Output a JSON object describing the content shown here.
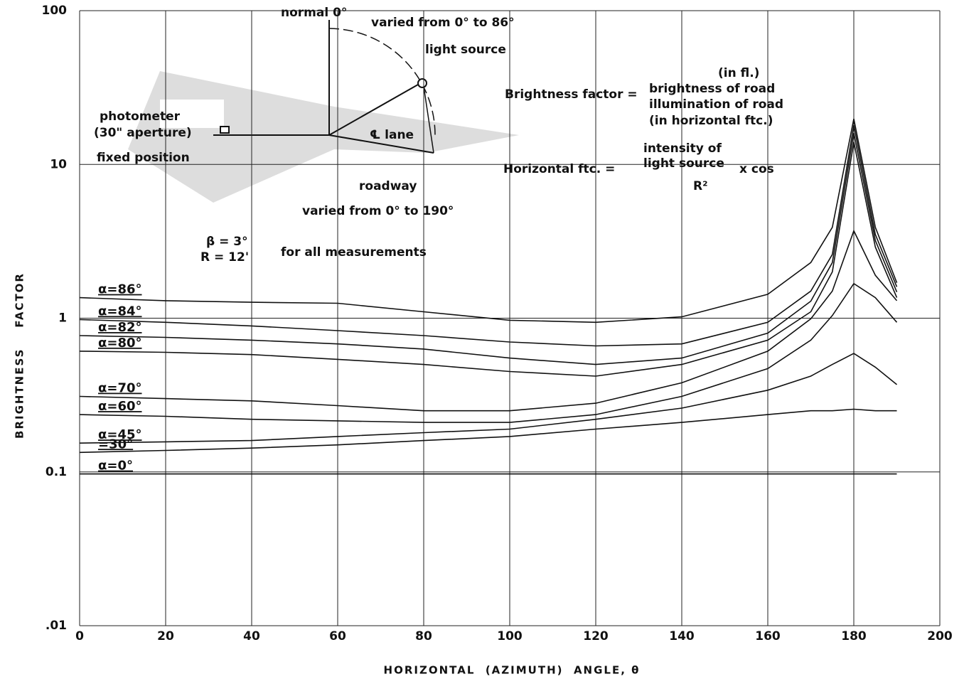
{
  "chart_data": {
    "type": "line",
    "xlabel": "HORIZONTAL  (AZIMUTH)  ANGLE, θ",
    "ylabel": "BRIGHTNESS    FACTOR",
    "log_y": true,
    "grid": true,
    "color": "#111111",
    "xlim": [
      0,
      200
    ],
    "ylim": [
      0.01,
      100
    ],
    "xticks": [
      0,
      20,
      40,
      60,
      80,
      100,
      120,
      140,
      160,
      180,
      200
    ],
    "yticks": [
      {
        "value": 0.01,
        "label": ".01"
      },
      0.1,
      1,
      10,
      100
    ],
    "x": [
      0,
      20,
      40,
      60,
      80,
      100,
      120,
      140,
      160,
      170,
      175,
      180,
      185,
      190
    ],
    "series": [
      {
        "name": "α=86°",
        "values": [
          1.36,
          1.3,
          1.27,
          1.25,
          1.1,
          0.97,
          0.94,
          1.02,
          1.43,
          2.3,
          3.9,
          19.8,
          3.9,
          1.7
        ]
      },
      {
        "name": "α=84°",
        "values": [
          0.98,
          0.94,
          0.89,
          0.83,
          0.77,
          0.7,
          0.66,
          0.68,
          0.94,
          1.5,
          2.6,
          18,
          3.5,
          1.6
        ]
      },
      {
        "name": "α=82°",
        "values": [
          0.77,
          0.75,
          0.72,
          0.68,
          0.63,
          0.55,
          0.5,
          0.55,
          0.8,
          1.29,
          2.3,
          16,
          3.2,
          1.48
        ]
      },
      {
        "name": "α=80°",
        "values": [
          0.61,
          0.6,
          0.58,
          0.54,
          0.5,
          0.45,
          0.42,
          0.5,
          0.72,
          1.1,
          2.0,
          14,
          2.9,
          1.36
        ]
      },
      {
        "name": "α=70°",
        "values": [
          0.31,
          0.3,
          0.29,
          0.27,
          0.25,
          0.25,
          0.28,
          0.38,
          0.61,
          0.99,
          1.5,
          3.7,
          1.9,
          1.3
        ]
      },
      {
        "name": "α=60°",
        "values": [
          0.236,
          0.23,
          0.22,
          0.215,
          0.21,
          0.21,
          0.236,
          0.31,
          0.47,
          0.72,
          1.04,
          1.68,
          1.36,
          0.94
        ]
      },
      {
        "name": "α=45°",
        "values": [
          0.154,
          0.157,
          0.16,
          0.17,
          0.18,
          0.19,
          0.22,
          0.26,
          0.34,
          0.42,
          0.5,
          0.59,
          0.48,
          0.37
        ]
      },
      {
        "name": "=30°",
        "values": [
          0.134,
          0.138,
          0.143,
          0.15,
          0.16,
          0.17,
          0.19,
          0.21,
          0.236,
          0.25,
          0.25,
          0.256,
          0.25,
          0.25
        ]
      },
      {
        "name": "α=0°",
        "values": [
          0.097,
          0.097,
          0.097,
          0.097,
          0.097,
          0.097,
          0.097,
          0.097,
          0.097,
          0.097,
          0.097,
          0.097,
          0.097,
          0.097
        ]
      }
    ],
    "annotations": [
      "normal 0°",
      "varied from 0° to 86°",
      "light source",
      "(in fl.)",
      "Brightness factor =",
      "brightness of road",
      "illumination of road",
      "(in horizontal ftc.)",
      "photometer",
      "(30\" aperture)",
      "fixed position",
      "℄ lane",
      "intensity of",
      "Horizontal ftc. =",
      "light source",
      "R²",
      "x cos",
      "roadway",
      "varied from 0° to 190°",
      "β = 3°",
      "R = 12'",
      "for all measurements"
    ]
  }
}
